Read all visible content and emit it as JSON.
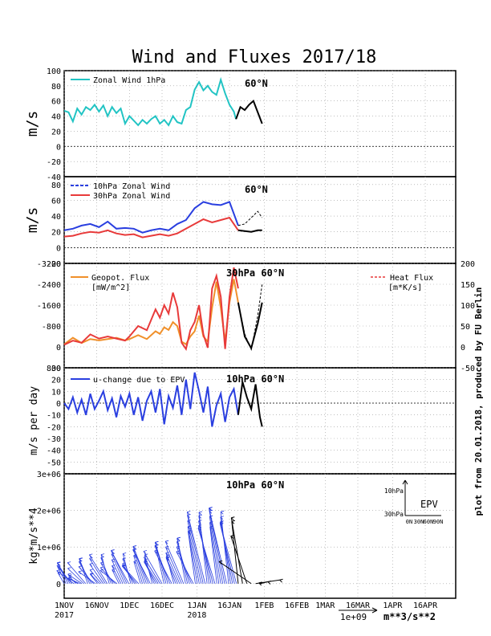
{
  "title": "Wind and Fluxes 2017/18",
  "credit": "plot from 20.01.2018, produced by FU Berlin",
  "x_ticks": [
    {
      "label": "1NOV",
      "sub": "2017",
      "day": 0
    },
    {
      "label": "16NOV",
      "sub": "",
      "day": 15
    },
    {
      "label": "1DEC",
      "sub": "",
      "day": 30
    },
    {
      "label": "16DEC",
      "sub": "",
      "day": 45
    },
    {
      "label": "1JAN",
      "sub": "2018",
      "day": 61
    },
    {
      "label": "16JAN",
      "sub": "",
      "day": 76
    },
    {
      "label": "1FEB",
      "sub": "",
      "day": 92
    },
    {
      "label": "16FEB",
      "sub": "",
      "day": 107
    },
    {
      "label": "1MAR",
      "sub": "",
      "day": 120
    },
    {
      "label": "16MAR",
      "sub": "",
      "day": 135
    },
    {
      "label": "1APR",
      "sub": "",
      "day": 151
    },
    {
      "label": "16APR",
      "sub": "",
      "day": 166
    }
  ],
  "colors": {
    "cyan": "#22c4c4",
    "blue": "#2a3fe0",
    "red": "#e83a3a",
    "orange": "#f0902a",
    "black": "#000000",
    "grid": "#999999"
  },
  "chart_data": [
    {
      "type": "line",
      "panel": "zonal-wind-1hpa",
      "ylabel": "m/s",
      "annotation": "60°N",
      "ylim": [
        -40,
        100
      ],
      "yticks": [
        -40,
        -20,
        0,
        20,
        40,
        60,
        80,
        100
      ],
      "series": [
        {
          "name": "Zonal Wind 1hPa",
          "color": "cyan",
          "style": "solid",
          "x": [
            0,
            2,
            4,
            6,
            8,
            10,
            12,
            14,
            16,
            18,
            20,
            22,
            24,
            26,
            28,
            30,
            32,
            34,
            36,
            38,
            40,
            42,
            44,
            46,
            48,
            50,
            52,
            54,
            56,
            58,
            60,
            62,
            64,
            66,
            68,
            70,
            72,
            74,
            76,
            78,
            79
          ],
          "y": [
            47,
            45,
            33,
            50,
            42,
            52,
            48,
            55,
            46,
            54,
            40,
            52,
            44,
            50,
            30,
            40,
            34,
            28,
            35,
            30,
            36,
            40,
            30,
            35,
            28,
            40,
            32,
            30,
            48,
            52,
            75,
            85,
            74,
            80,
            72,
            68,
            88,
            70,
            55,
            46,
            36
          ]
        },
        {
          "name": "",
          "color": "black",
          "style": "solid",
          "x": [
            79,
            81,
            83,
            85,
            87,
            89,
            91
          ],
          "y": [
            36,
            52,
            48,
            55,
            60,
            45,
            30
          ]
        }
      ]
    },
    {
      "type": "line",
      "panel": "zonal-wind-10-30hpa",
      "ylabel": "m/s",
      "annotation": "60°N",
      "ylim": [
        -20,
        90
      ],
      "yticks": [
        -20,
        0,
        20,
        40,
        60,
        80
      ],
      "series": [
        {
          "name": "10hPa Zonal Wind",
          "color": "blue",
          "style": "solid",
          "x": [
            0,
            4,
            8,
            12,
            16,
            20,
            24,
            28,
            32,
            36,
            40,
            44,
            48,
            52,
            56,
            60,
            64,
            68,
            72,
            76,
            80
          ],
          "y": [
            22,
            24,
            28,
            30,
            26,
            33,
            24,
            25,
            24,
            19,
            22,
            24,
            22,
            30,
            35,
            50,
            58,
            55,
            54,
            58,
            28
          ]
        },
        {
          "name": "30hPa Zonal Wind",
          "color": "red",
          "style": "solid",
          "x": [
            0,
            4,
            8,
            12,
            16,
            20,
            24,
            28,
            32,
            36,
            40,
            44,
            48,
            52,
            56,
            60,
            64,
            68,
            72,
            76,
            80
          ],
          "y": [
            14,
            15,
            18,
            20,
            19,
            22,
            18,
            16,
            17,
            13,
            15,
            17,
            15,
            18,
            24,
            30,
            36,
            32,
            35,
            38,
            22
          ]
        },
        {
          "name": "",
          "color": "black",
          "style": "dashed",
          "x": [
            80,
            83,
            86,
            89,
            91
          ],
          "y": [
            28,
            30,
            38,
            46,
            38
          ]
        },
        {
          "name": "",
          "color": "black",
          "style": "solid",
          "x": [
            80,
            83,
            86,
            89,
            91
          ],
          "y": [
            22,
            21,
            20,
            22,
            22
          ]
        }
      ]
    },
    {
      "type": "line",
      "panel": "fluxes-30hpa",
      "annotation": "30hPa 60°N",
      "ylim": [
        800,
        -3200
      ],
      "yticks": [
        800,
        0,
        -800,
        -1600,
        -2400,
        -3200
      ],
      "y2lim": [
        -50,
        200
      ],
      "y2ticks": [
        -50,
        0,
        50,
        100,
        150,
        200
      ],
      "legend_left": [
        "Geopot. Flux",
        "[mW/m^2]"
      ],
      "legend_right": [
        "Heat Flux",
        "[m*K/s]"
      ],
      "series": [
        {
          "name": "Geopot. Flux",
          "color": "orange",
          "style": "solid",
          "x": [
            0,
            4,
            8,
            12,
            16,
            20,
            24,
            28,
            30,
            34,
            38,
            42,
            44,
            46,
            48,
            50,
            52,
            54,
            56,
            58,
            60,
            62,
            64,
            66,
            68,
            70,
            72,
            74,
            76,
            78,
            80
          ],
          "y": [
            -100,
            -350,
            -150,
            -300,
            -250,
            -300,
            -350,
            -250,
            -300,
            -450,
            -300,
            -600,
            -500,
            -750,
            -650,
            -950,
            -800,
            -200,
            -100,
            -400,
            -600,
            -1200,
            -400,
            -200,
            -1500,
            -2500,
            -1500,
            -200,
            -1700,
            -2600,
            -1700
          ]
        },
        {
          "name": "Heat Flux",
          "color": "red",
          "style": "solid",
          "x": [
            0,
            4,
            8,
            12,
            16,
            20,
            24,
            28,
            30,
            34,
            38,
            42,
            44,
            46,
            48,
            50,
            52,
            54,
            56,
            58,
            60,
            62,
            64,
            66,
            68,
            70,
            72,
            74,
            76,
            78,
            80
          ],
          "y": [
            5,
            15,
            10,
            30,
            20,
            25,
            20,
            15,
            25,
            50,
            40,
            90,
            70,
            100,
            80,
            130,
            95,
            10,
            -5,
            40,
            60,
            100,
            30,
            -2,
            140,
            170,
            120,
            -5,
            120,
            190,
            140
          ]
        },
        {
          "name": "",
          "color": "black",
          "style": "dashed",
          "x": [
            80,
            83,
            86,
            89,
            91
          ],
          "y": [
            -1700,
            -500,
            100,
            -1200,
            -2400
          ]
        },
        {
          "name": "",
          "color": "black",
          "style": "solid",
          "x": [
            80,
            83,
            86,
            89,
            91
          ],
          "y": [
            -1700,
            -400,
            50,
            -900,
            -1700
          ]
        }
      ]
    },
    {
      "type": "line",
      "panel": "u-change-epv",
      "ylabel": "m/s per day",
      "annotation": "10hPa 60°N",
      "ylim": [
        -60,
        30
      ],
      "yticks": [
        -50,
        -40,
        -30,
        -20,
        -10,
        0,
        10,
        20,
        30
      ],
      "series": [
        {
          "name": "u-change due to EPV",
          "color": "blue",
          "style": "solid",
          "x": [
            0,
            2,
            4,
            6,
            8,
            10,
            12,
            14,
            16,
            18,
            20,
            22,
            24,
            26,
            28,
            30,
            32,
            34,
            36,
            38,
            40,
            42,
            44,
            46,
            48,
            50,
            52,
            54,
            56,
            58,
            60,
            62,
            64,
            66,
            68,
            70,
            72,
            74,
            76,
            78,
            80
          ],
          "y": [
            0,
            -5,
            5,
            -8,
            3,
            -10,
            8,
            -5,
            2,
            10,
            -6,
            4,
            -12,
            6,
            -3,
            8,
            -10,
            5,
            -15,
            2,
            10,
            -8,
            12,
            -18,
            6,
            -4,
            15,
            -10,
            20,
            -5,
            26,
            10,
            -8,
            14,
            -20,
            -2,
            8,
            -16,
            5,
            12,
            -10
          ]
        },
        {
          "name": "",
          "color": "black",
          "style": "solid",
          "x": [
            80,
            82,
            84,
            86,
            88,
            90,
            91
          ],
          "y": [
            -10,
            18,
            5,
            -5,
            16,
            -12,
            -20
          ]
        }
      ]
    },
    {
      "type": "scatter",
      "panel": "epv-arrows",
      "ylabel": "kg*m/s**4",
      "annotation": "10hPa 60°N",
      "ylim": [
        -400000,
        3000000
      ],
      "yticks": [
        0,
        1000000,
        2000000,
        3000000
      ],
      "ytick_labels": [
        "0",
        "1e+06",
        "2e+06",
        "3e+06"
      ],
      "inset_title": "EPV",
      "inset_yticks": [
        "10hPa",
        "30hPa"
      ],
      "inset_xticks": [
        "0N",
        "30N",
        "60N",
        "90N"
      ],
      "arrow_key": "1e+09",
      "arrow_key_unit": "m**3/s**2"
    }
  ]
}
